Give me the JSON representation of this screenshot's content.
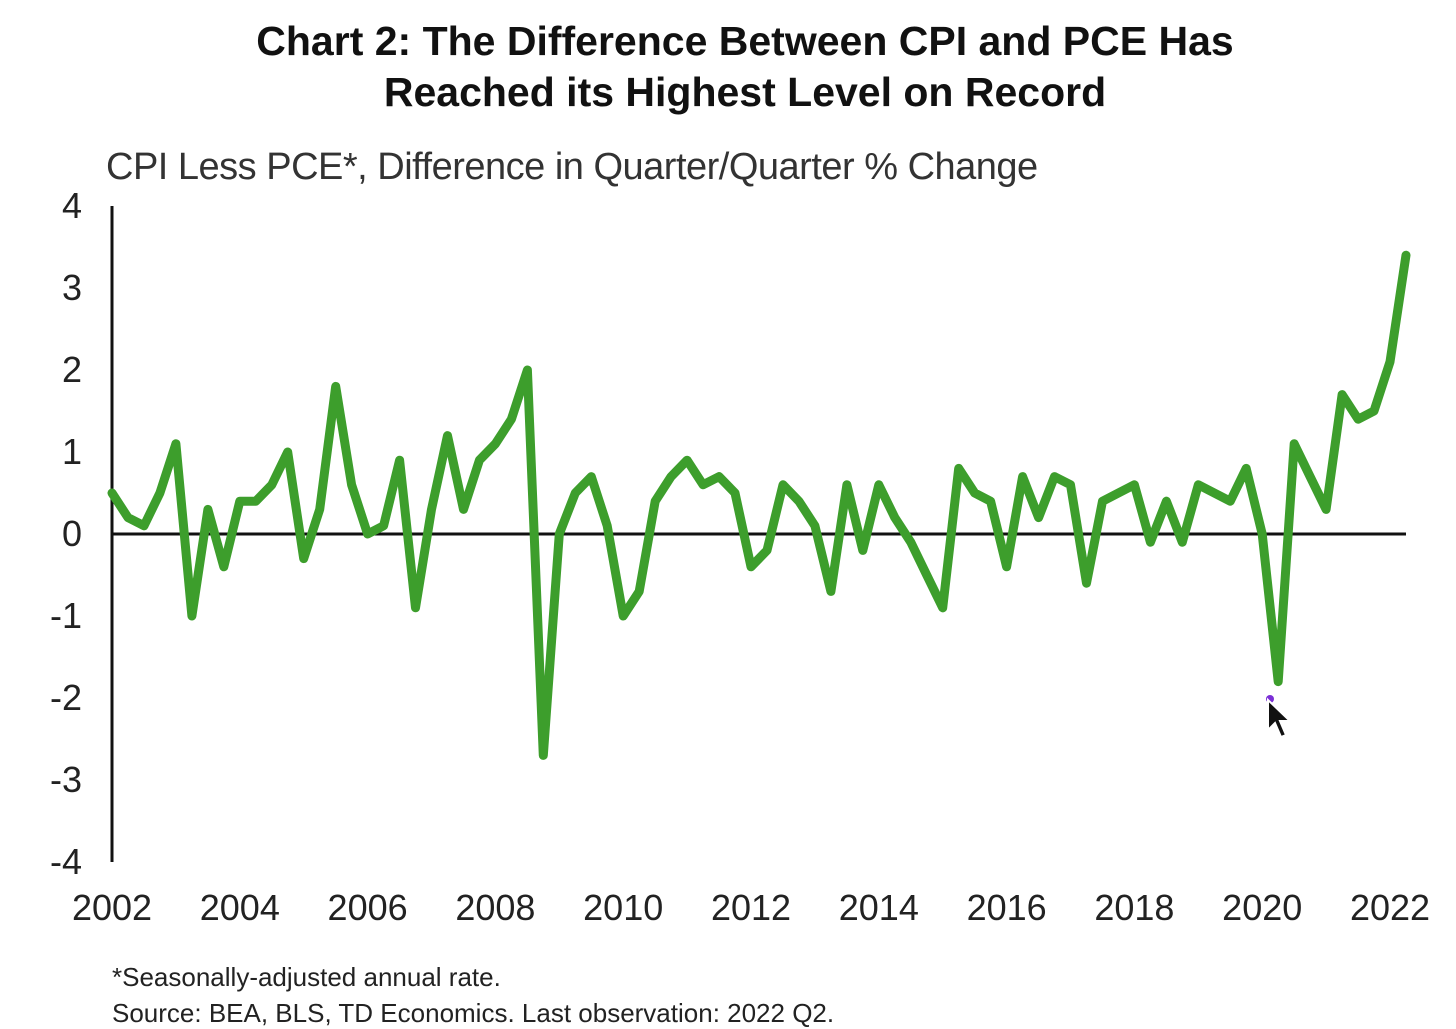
{
  "title": {
    "line1": "Chart 2: The Difference Between CPI and PCE Has",
    "line2": "Reached its Highest Level on Record"
  },
  "subtitle": "CPI Less PCE*, Difference in Quarter/Quarter % Change",
  "footnote": "*Seasonally-adjusted annual rate.",
  "source": "Source: BEA, BLS, TD Economics. Last observation: 2022 Q2.",
  "colors": {
    "line": "#3d9e2c",
    "axis": "#111111",
    "cursor_dot": "#7b2fd6"
  },
  "chart_data": {
    "type": "line",
    "title": "Chart 2: The Difference Between CPI and PCE Has Reached its Highest Level on Record",
    "ylabel": "CPI Less PCE*, Difference in Quarter/Quarter % Change",
    "xlabel": "",
    "ylim": [
      -4,
      4
    ],
    "xlim": [
      2002,
      2022.25
    ],
    "yticks": [
      4,
      3,
      2,
      1,
      0,
      -1,
      -2,
      -3,
      -4
    ],
    "xticks": [
      "2002",
      "2004",
      "2006",
      "2008",
      "2010",
      "2012",
      "2014",
      "2016",
      "2018",
      "2020",
      "2022"
    ],
    "grid": false,
    "legend": "none",
    "series": [
      {
        "x": [
          "2002 Q1",
          "2002 Q2",
          "2002 Q3",
          "2002 Q4",
          "2003 Q1",
          "2003 Q2",
          "2003 Q3",
          "2003 Q4",
          "2004 Q1",
          "2004 Q2",
          "2004 Q3",
          "2004 Q4",
          "2005 Q1",
          "2005 Q2",
          "2005 Q3",
          "2005 Q4",
          "2006 Q1",
          "2006 Q2",
          "2006 Q3",
          "2006 Q4",
          "2007 Q1",
          "2007 Q2",
          "2007 Q3",
          "2007 Q4",
          "2008 Q1",
          "2008 Q2",
          "2008 Q3",
          "2008 Q4",
          "2009 Q1",
          "2009 Q2",
          "2009 Q3",
          "2009 Q4",
          "2010 Q1",
          "2010 Q2",
          "2010 Q3",
          "2010 Q4",
          "2011 Q1",
          "2011 Q2",
          "2011 Q3",
          "2011 Q4",
          "2012 Q1",
          "2012 Q2",
          "2012 Q3",
          "2012 Q4",
          "2013 Q1",
          "2013 Q2",
          "2013 Q3",
          "2013 Q4",
          "2014 Q1",
          "2014 Q2",
          "2014 Q3",
          "2014 Q4",
          "2015 Q1",
          "2015 Q2",
          "2015 Q3",
          "2015 Q4",
          "2016 Q1",
          "2016 Q2",
          "2016 Q3",
          "2016 Q4",
          "2017 Q1",
          "2017 Q2",
          "2017 Q3",
          "2017 Q4",
          "2018 Q1",
          "2018 Q2",
          "2018 Q3",
          "2018 Q4",
          "2019 Q1",
          "2019 Q2",
          "2019 Q3",
          "2019 Q4",
          "2020 Q1",
          "2020 Q2",
          "2020 Q3",
          "2020 Q4",
          "2021 Q1",
          "2021 Q2",
          "2021 Q3",
          "2021 Q4",
          "2022 Q1",
          "2022 Q2"
        ],
        "values": [
          0.5,
          0.2,
          0.1,
          0.5,
          1.1,
          -1.0,
          0.3,
          -0.4,
          0.4,
          0.4,
          0.6,
          1.0,
          -0.3,
          0.3,
          1.8,
          0.6,
          0.0,
          0.1,
          0.9,
          -0.9,
          0.3,
          1.2,
          0.3,
          0.9,
          1.1,
          1.4,
          2.0,
          -2.7,
          0.0,
          0.5,
          0.7,
          0.1,
          -1.0,
          -0.7,
          0.4,
          0.7,
          0.9,
          0.6,
          0.7,
          0.5,
          -0.4,
          -0.2,
          0.6,
          0.4,
          0.1,
          -0.7,
          0.6,
          -0.2,
          0.6,
          0.2,
          -0.1,
          -0.5,
          -0.9,
          0.8,
          0.5,
          0.4,
          -0.4,
          0.7,
          0.2,
          0.7,
          0.6,
          -0.6,
          0.4,
          0.5,
          0.6,
          -0.1,
          0.4,
          -0.1,
          0.6,
          0.5,
          0.4,
          0.8,
          0.0,
          -1.8,
          1.1,
          0.7,
          0.3,
          1.7,
          1.4,
          1.5,
          2.1,
          3.4
        ]
      }
    ]
  }
}
